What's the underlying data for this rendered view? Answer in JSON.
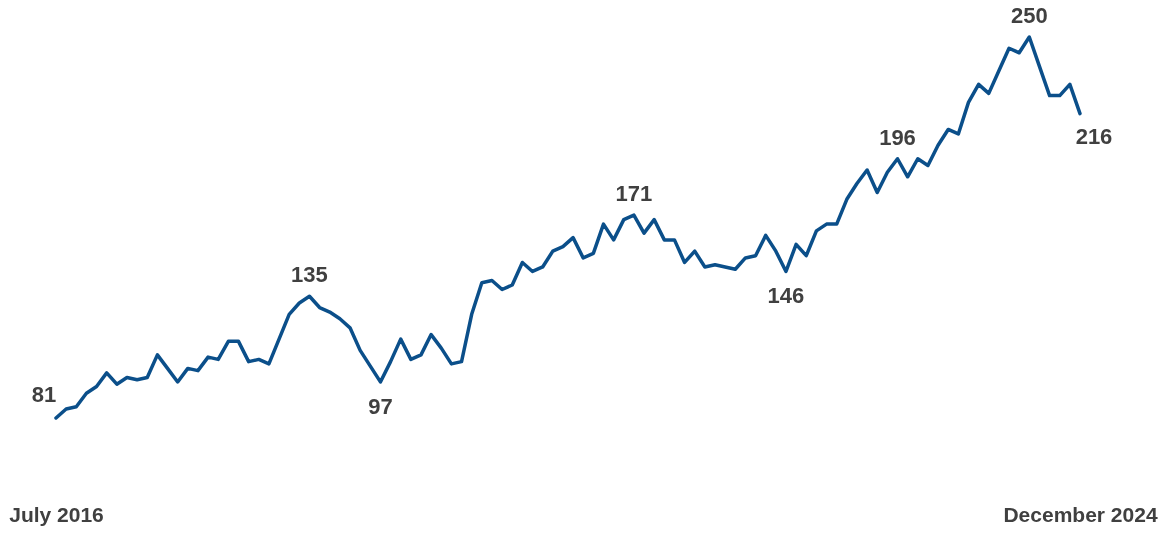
{
  "chart_data": {
    "type": "line",
    "categories": [
      "July 2016",
      null,
      null,
      null,
      null,
      null,
      null,
      null,
      null,
      null,
      null,
      null,
      null,
      null,
      null,
      null,
      null,
      null,
      null,
      null,
      null,
      null,
      null,
      null,
      null,
      null,
      null,
      null,
      null,
      null,
      null,
      null,
      null,
      null,
      null,
      null,
      null,
      null,
      null,
      null,
      null,
      null,
      null,
      null,
      null,
      null,
      null,
      null,
      null,
      null,
      null,
      null,
      null,
      null,
      null,
      null,
      null,
      null,
      null,
      null,
      null,
      null,
      null,
      null,
      null,
      null,
      null,
      null,
      null,
      null,
      null,
      null,
      null,
      null,
      null,
      null,
      null,
      null,
      null,
      null,
      null,
      null,
      null,
      null,
      null,
      null,
      null,
      null,
      null,
      null,
      null,
      null,
      null,
      null,
      null,
      null,
      null,
      null,
      null,
      null,
      null,
      "December 2024"
    ],
    "series": [
      {
        "color": "#0b4f8a",
        "values": [
          81,
          85,
          86,
          92,
          95,
          101,
          96,
          99,
          98,
          99,
          109,
          103,
          97,
          103,
          102,
          108,
          107,
          115,
          115,
          106,
          107,
          105,
          116,
          127,
          132,
          135,
          130,
          128,
          125,
          121,
          111,
          104,
          97,
          106,
          116,
          107,
          109,
          118,
          112,
          105,
          106,
          127,
          141,
          142,
          138,
          140,
          150,
          146,
          148,
          155,
          157,
          161,
          152,
          154,
          167,
          160,
          169,
          171,
          163,
          169,
          160,
          160,
          150,
          155,
          148,
          149,
          148,
          147,
          152,
          153,
          162,
          155,
          146,
          158,
          153,
          164,
          167,
          167,
          178,
          185,
          191,
          181,
          190,
          196,
          188,
          196,
          193,
          202,
          209,
          207,
          221,
          229,
          225,
          235,
          245,
          243,
          250,
          237,
          224,
          224,
          229,
          216
        ],
        "value_labels": [
          "81",
          null,
          null,
          null,
          null,
          null,
          null,
          null,
          null,
          null,
          null,
          null,
          null,
          null,
          null,
          null,
          null,
          null,
          null,
          null,
          null,
          null,
          null,
          null,
          null,
          "135",
          null,
          null,
          null,
          null,
          null,
          null,
          "97",
          null,
          null,
          null,
          null,
          null,
          null,
          null,
          null,
          null,
          null,
          null,
          null,
          null,
          null,
          null,
          null,
          null,
          null,
          null,
          null,
          null,
          null,
          null,
          null,
          "171",
          null,
          null,
          null,
          null,
          null,
          null,
          null,
          null,
          null,
          null,
          null,
          null,
          null,
          null,
          "146",
          null,
          null,
          null,
          null,
          null,
          null,
          null,
          null,
          null,
          null,
          "196",
          null,
          null,
          null,
          null,
          null,
          null,
          null,
          null,
          null,
          null,
          null,
          null,
          "250",
          null,
          null,
          null,
          null,
          "216"
        ]
      }
    ],
    "tick_labels": "x",
    "marker": "none",
    "line_style": "solid"
  }
}
